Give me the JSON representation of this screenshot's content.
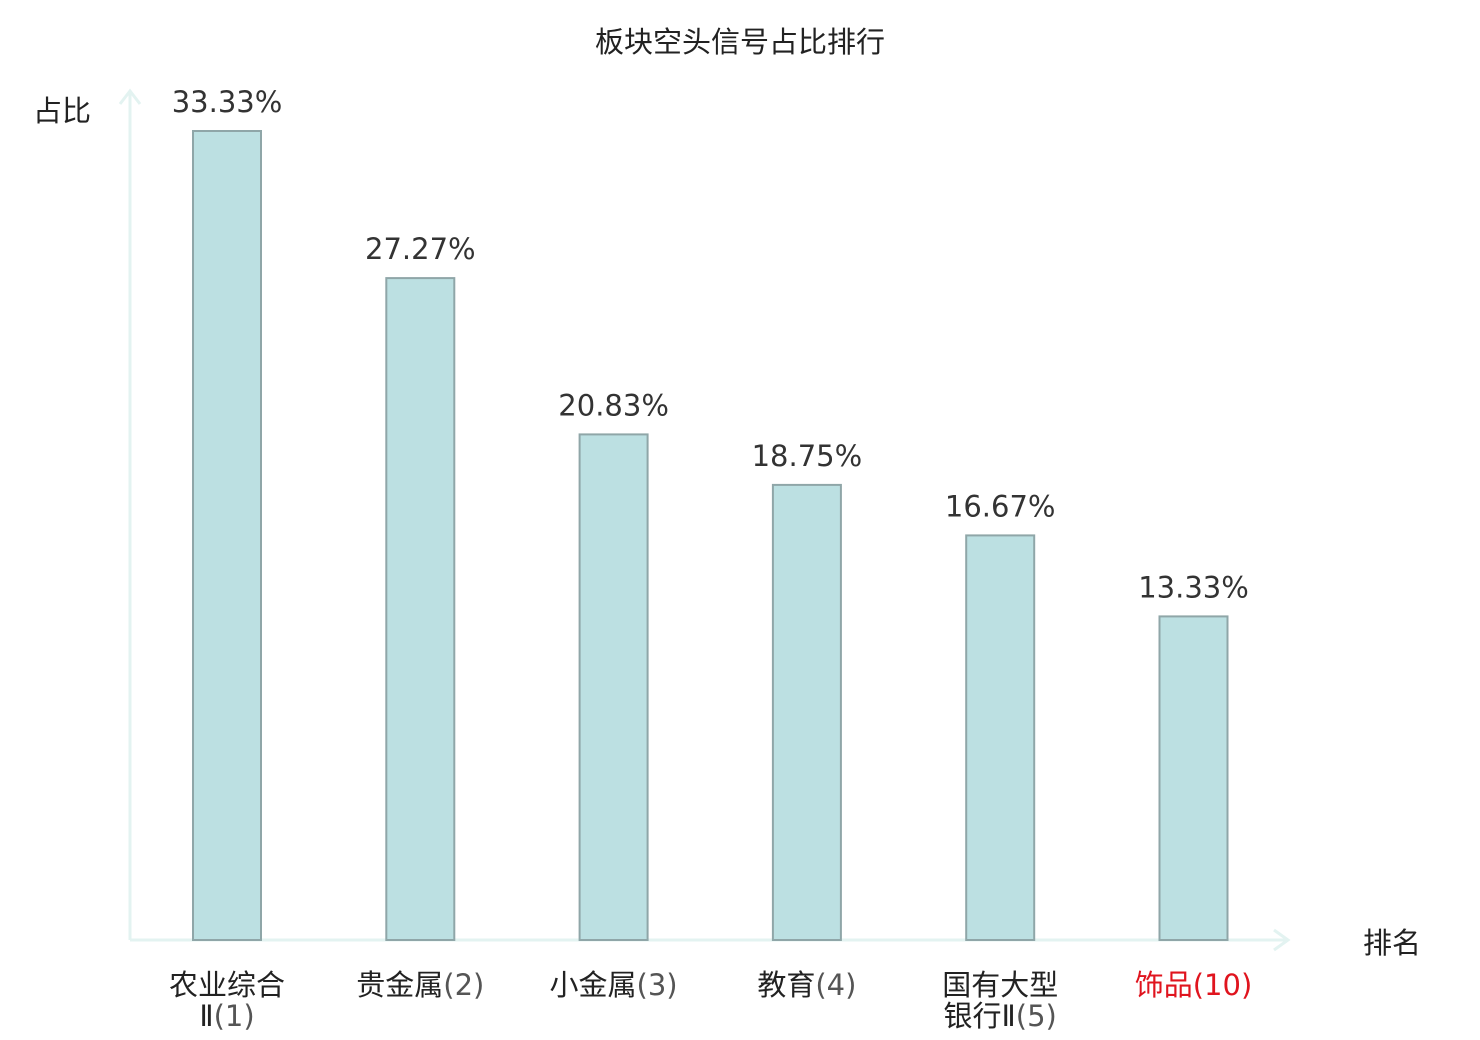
{
  "chart_data": {
    "type": "bar",
    "title": "板块空头信号占比排行",
    "ylabel": "占比",
    "xlabel": "排名",
    "categories": [
      {
        "lines": [
          {
            "name": "农业综合",
            "rank": ""
          },
          {
            "name": "Ⅱ",
            "rank": "(1)"
          }
        ]
      },
      {
        "lines": [
          {
            "name": "贵金属",
            "rank": "(2)"
          }
        ]
      },
      {
        "lines": [
          {
            "name": "小金属",
            "rank": "(3)"
          }
        ]
      },
      {
        "lines": [
          {
            "name": "教育",
            "rank": "(4)"
          }
        ]
      },
      {
        "lines": [
          {
            "name": "国有大型",
            "rank": ""
          },
          {
            "name": "银行Ⅱ",
            "rank": "(5)"
          }
        ]
      },
      {
        "lines": [
          {
            "name": "饰品",
            "rank": "(10)"
          }
        ],
        "highlight": true
      }
    ],
    "values": [
      33.33,
      27.27,
      20.83,
      18.75,
      16.67,
      13.33
    ],
    "value_labels": [
      "33.33%",
      "27.27%",
      "20.83%",
      "18.75%",
      "16.67%",
      "13.33%"
    ],
    "ylim": [
      0,
      33.33
    ],
    "grid": false,
    "colors": {
      "bar_fill": "#bce0e2",
      "bar_stroke": "#8fa6a8",
      "axis": "#e3f3f1",
      "text": "#222222",
      "value_text": "#333333",
      "rank_text": "#555555",
      "highlight": "#e0141e"
    }
  }
}
